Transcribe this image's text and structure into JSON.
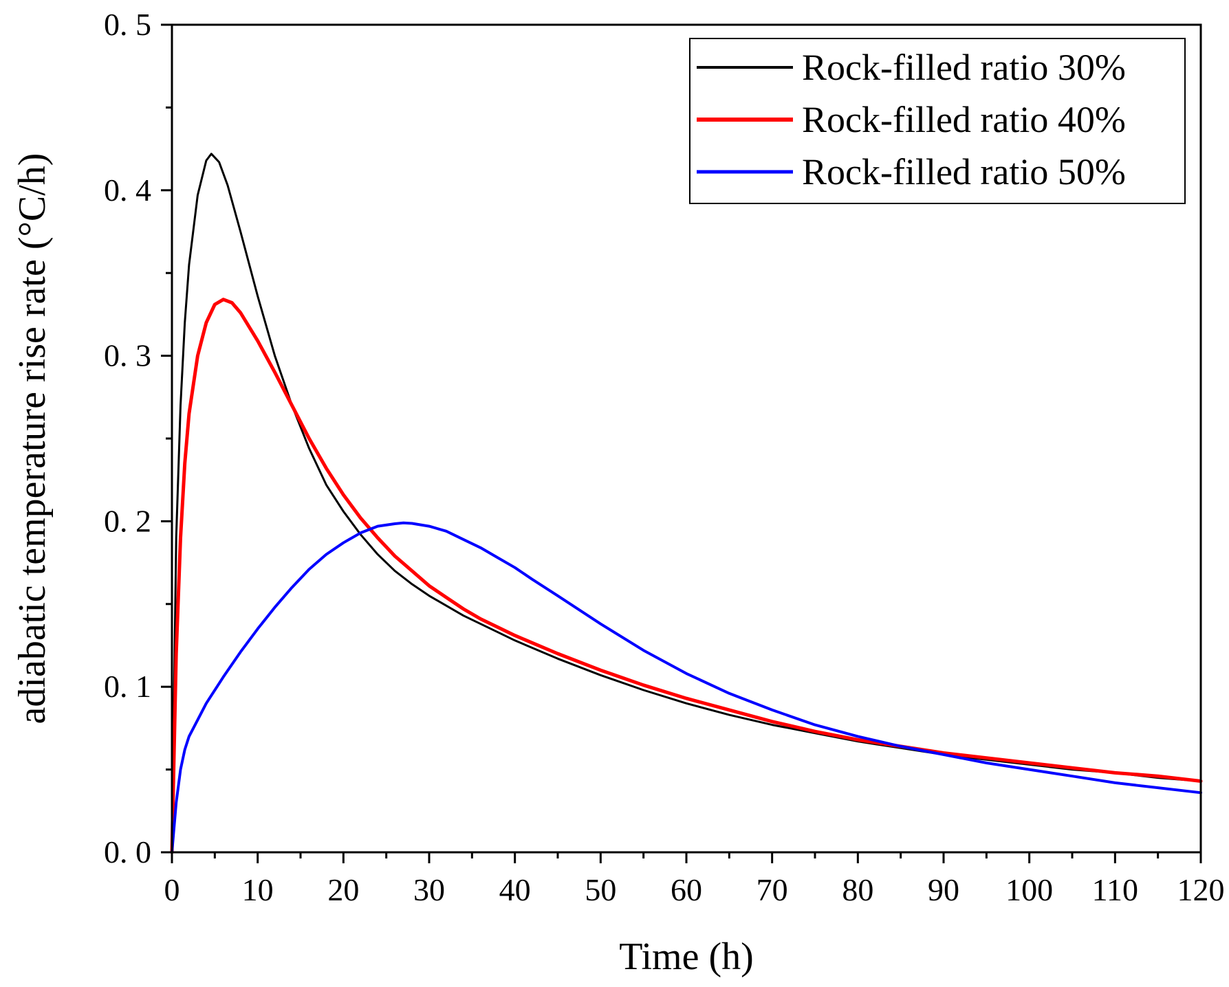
{
  "chart_data": {
    "type": "line",
    "xlabel": "Time (h)",
    "ylabel": "adiabatic temperature rise rate (°C/h)",
    "xlim": [
      0,
      120
    ],
    "ylim": [
      0,
      0.5
    ],
    "x_ticks": [
      0,
      10,
      20,
      30,
      40,
      50,
      60,
      70,
      80,
      90,
      100,
      110,
      120
    ],
    "x_tick_labels": [
      "0",
      "10",
      "20",
      "30",
      "40",
      "50",
      "60",
      "70",
      "80",
      "90",
      "100",
      "110",
      "120"
    ],
    "y_ticks": [
      0,
      0.1,
      0.2,
      0.3,
      0.4,
      0.5
    ],
    "y_tick_labels": [
      "0. 0",
      "0. 1",
      "0. 2",
      "0. 3",
      "0. 4",
      "0. 5"
    ],
    "grid": false,
    "legend_position": "top-right",
    "series": [
      {
        "name": "Rock-filled ratio 30%",
        "color": "#000000",
        "x": [
          0,
          0.5,
          1,
          1.5,
          2,
          3,
          4,
          4.6,
          5.5,
          6.5,
          8,
          10,
          12,
          14,
          16,
          18,
          20,
          22,
          24,
          26,
          28,
          30,
          32,
          34,
          36,
          38,
          40,
          45,
          50,
          55,
          60,
          65,
          70,
          75,
          80,
          85,
          90,
          95,
          100,
          105,
          110,
          115,
          120
        ],
        "y": [
          0,
          0.19,
          0.27,
          0.32,
          0.355,
          0.397,
          0.418,
          0.422,
          0.417,
          0.403,
          0.375,
          0.336,
          0.3,
          0.27,
          0.244,
          0.222,
          0.206,
          0.192,
          0.18,
          0.17,
          0.162,
          0.155,
          0.149,
          0.143,
          0.138,
          0.133,
          0.128,
          0.117,
          0.107,
          0.098,
          0.09,
          0.083,
          0.077,
          0.072,
          0.067,
          0.063,
          0.059,
          0.056,
          0.053,
          0.05,
          0.048,
          0.045,
          0.043
        ]
      },
      {
        "name": "Rock-filled ratio 40%",
        "color": "#ff0000",
        "x": [
          0,
          0.5,
          1,
          1.5,
          2,
          3,
          4,
          5,
          6,
          7,
          8,
          10,
          12,
          14,
          16,
          18,
          20,
          22,
          24,
          26,
          28,
          30,
          32,
          34,
          36,
          38,
          40,
          45,
          50,
          55,
          60,
          65,
          70,
          75,
          80,
          85,
          90,
          95,
          100,
          105,
          110,
          115,
          120
        ],
        "y": [
          0,
          0.12,
          0.19,
          0.235,
          0.265,
          0.3,
          0.32,
          0.331,
          0.334,
          0.332,
          0.326,
          0.309,
          0.29,
          0.27,
          0.25,
          0.232,
          0.216,
          0.202,
          0.19,
          0.179,
          0.17,
          0.161,
          0.154,
          0.147,
          0.141,
          0.136,
          0.131,
          0.12,
          0.11,
          0.101,
          0.093,
          0.086,
          0.079,
          0.073,
          0.068,
          0.064,
          0.06,
          0.057,
          0.054,
          0.051,
          0.048,
          0.046,
          0.043
        ]
      },
      {
        "name": "Rock-filled ratio 50%",
        "color": "#0000ff",
        "x": [
          0,
          0.5,
          1,
          1.5,
          2,
          3,
          4,
          6,
          8,
          10,
          12,
          14,
          16,
          18,
          20,
          22,
          24,
          26,
          27,
          28,
          30,
          32,
          34,
          36,
          38,
          40,
          42,
          45,
          50,
          55,
          60,
          65,
          70,
          75,
          80,
          85,
          90,
          95,
          100,
          105,
          110,
          115,
          120
        ],
        "y": [
          0,
          0.03,
          0.05,
          0.062,
          0.07,
          0.08,
          0.09,
          0.106,
          0.121,
          0.135,
          0.148,
          0.16,
          0.171,
          0.18,
          0.187,
          0.193,
          0.197,
          0.1985,
          0.199,
          0.1987,
          0.197,
          0.194,
          0.189,
          0.184,
          0.178,
          0.172,
          0.165,
          0.155,
          0.138,
          0.122,
          0.108,
          0.096,
          0.086,
          0.077,
          0.07,
          0.064,
          0.059,
          0.054,
          0.05,
          0.046,
          0.042,
          0.039,
          0.036
        ]
      }
    ]
  }
}
